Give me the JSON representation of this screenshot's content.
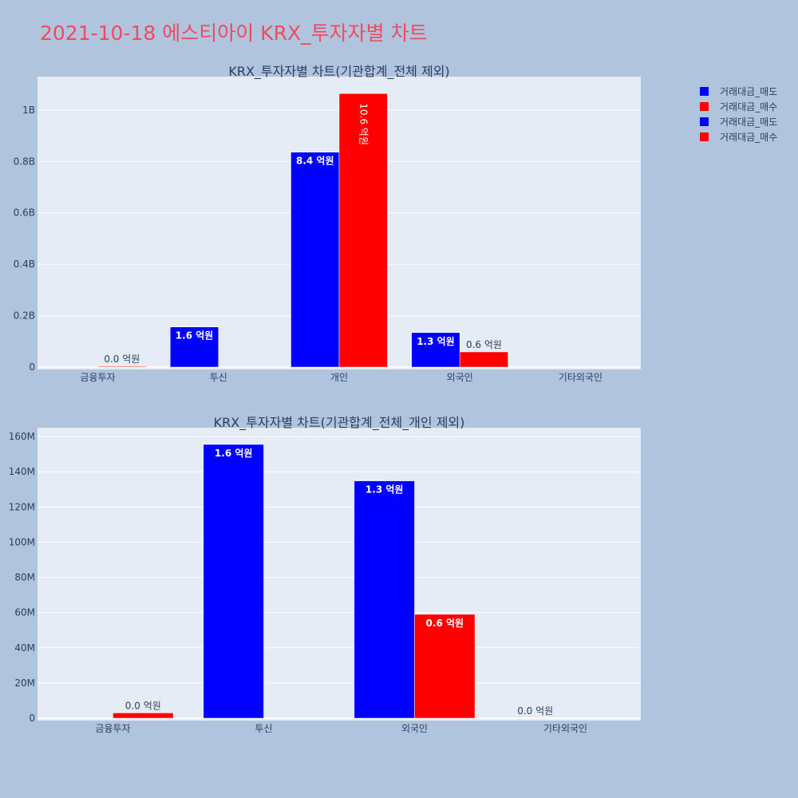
{
  "title": "2021-10-18 에스티아이 KRX_투자자별 차트",
  "colors": {
    "background": "#b0c4de",
    "plot_bg": "#e5ecf6",
    "title": "#ef4b5e",
    "sell": "#0000ff",
    "buy": "#ff0000"
  },
  "legend": {
    "placement": "top-right",
    "items": [
      {
        "label": "거래대금_매도",
        "color": "#0000ff"
      },
      {
        "label": "거래대금_매수",
        "color": "#ff0000"
      },
      {
        "label": "거래대금_매도",
        "color": "#0000ff"
      },
      {
        "label": "거래대금_매수",
        "color": "#ff0000"
      }
    ]
  },
  "chart_data": [
    {
      "type": "bar",
      "title": "KRX_투자자별 차트(기관합계_전체 제외)",
      "categories": [
        "금융투자",
        "투신",
        "개인",
        "외국인",
        "기타외국인"
      ],
      "ylim": [
        0,
        1130000000
      ],
      "y_ticks": [
        0,
        200000000,
        400000000,
        600000000,
        800000000,
        1000000000
      ],
      "y_tick_labels": [
        "0",
        "0.2B",
        "0.4B",
        "0.6B",
        "0.8B",
        "1B"
      ],
      "grid": true,
      "series": [
        {
          "name": "거래대금_매도",
          "color": "#0000ff",
          "values": [
            0,
            156000000,
            836000000,
            134000000,
            0
          ],
          "labels": [
            "",
            "1.6 억원",
            "8.4 억원",
            "1.3 억원",
            ""
          ],
          "label_pos": [
            "",
            "inside",
            "inside",
            "inside",
            ""
          ]
        },
        {
          "name": "거래대금_매수",
          "color": "#ff0000",
          "values": [
            3000000,
            0,
            1064000000,
            59000000,
            0
          ],
          "labels": [
            "0.0 억원",
            "",
            "10.6 억원",
            "0.6 억원",
            ""
          ],
          "label_pos": [
            "outside",
            "",
            "inside-rotated",
            "outside",
            ""
          ]
        }
      ]
    },
    {
      "type": "bar",
      "title": "KRX_투자자별 차트(기관합계_전체_개인 제외)",
      "categories": [
        "금융투자",
        "투신",
        "외국인",
        "기타외국인"
      ],
      "ylim": [
        0,
        165000000
      ],
      "y_ticks": [
        0,
        20000000,
        40000000,
        60000000,
        80000000,
        100000000,
        120000000,
        140000000,
        160000000
      ],
      "y_tick_labels": [
        "0",
        "20M",
        "40M",
        "60M",
        "80M",
        "100M",
        "120M",
        "140M",
        "160M"
      ],
      "grid": true,
      "series": [
        {
          "name": "거래대금_매도",
          "color": "#0000ff",
          "values": [
            0,
            155500000,
            134800000,
            0
          ],
          "labels": [
            "",
            "1.6 억원",
            "1.3 억원",
            "0.0 억원"
          ],
          "label_pos": [
            "",
            "inside",
            "inside",
            "outside"
          ]
        },
        {
          "name": "거래대금_매수",
          "color": "#ff0000",
          "values": [
            3000000,
            0,
            59000000,
            0
          ],
          "labels": [
            "0.0 억원",
            "",
            "0.6 억원",
            ""
          ],
          "label_pos": [
            "outside",
            "",
            "inside",
            ""
          ]
        }
      ]
    }
  ]
}
